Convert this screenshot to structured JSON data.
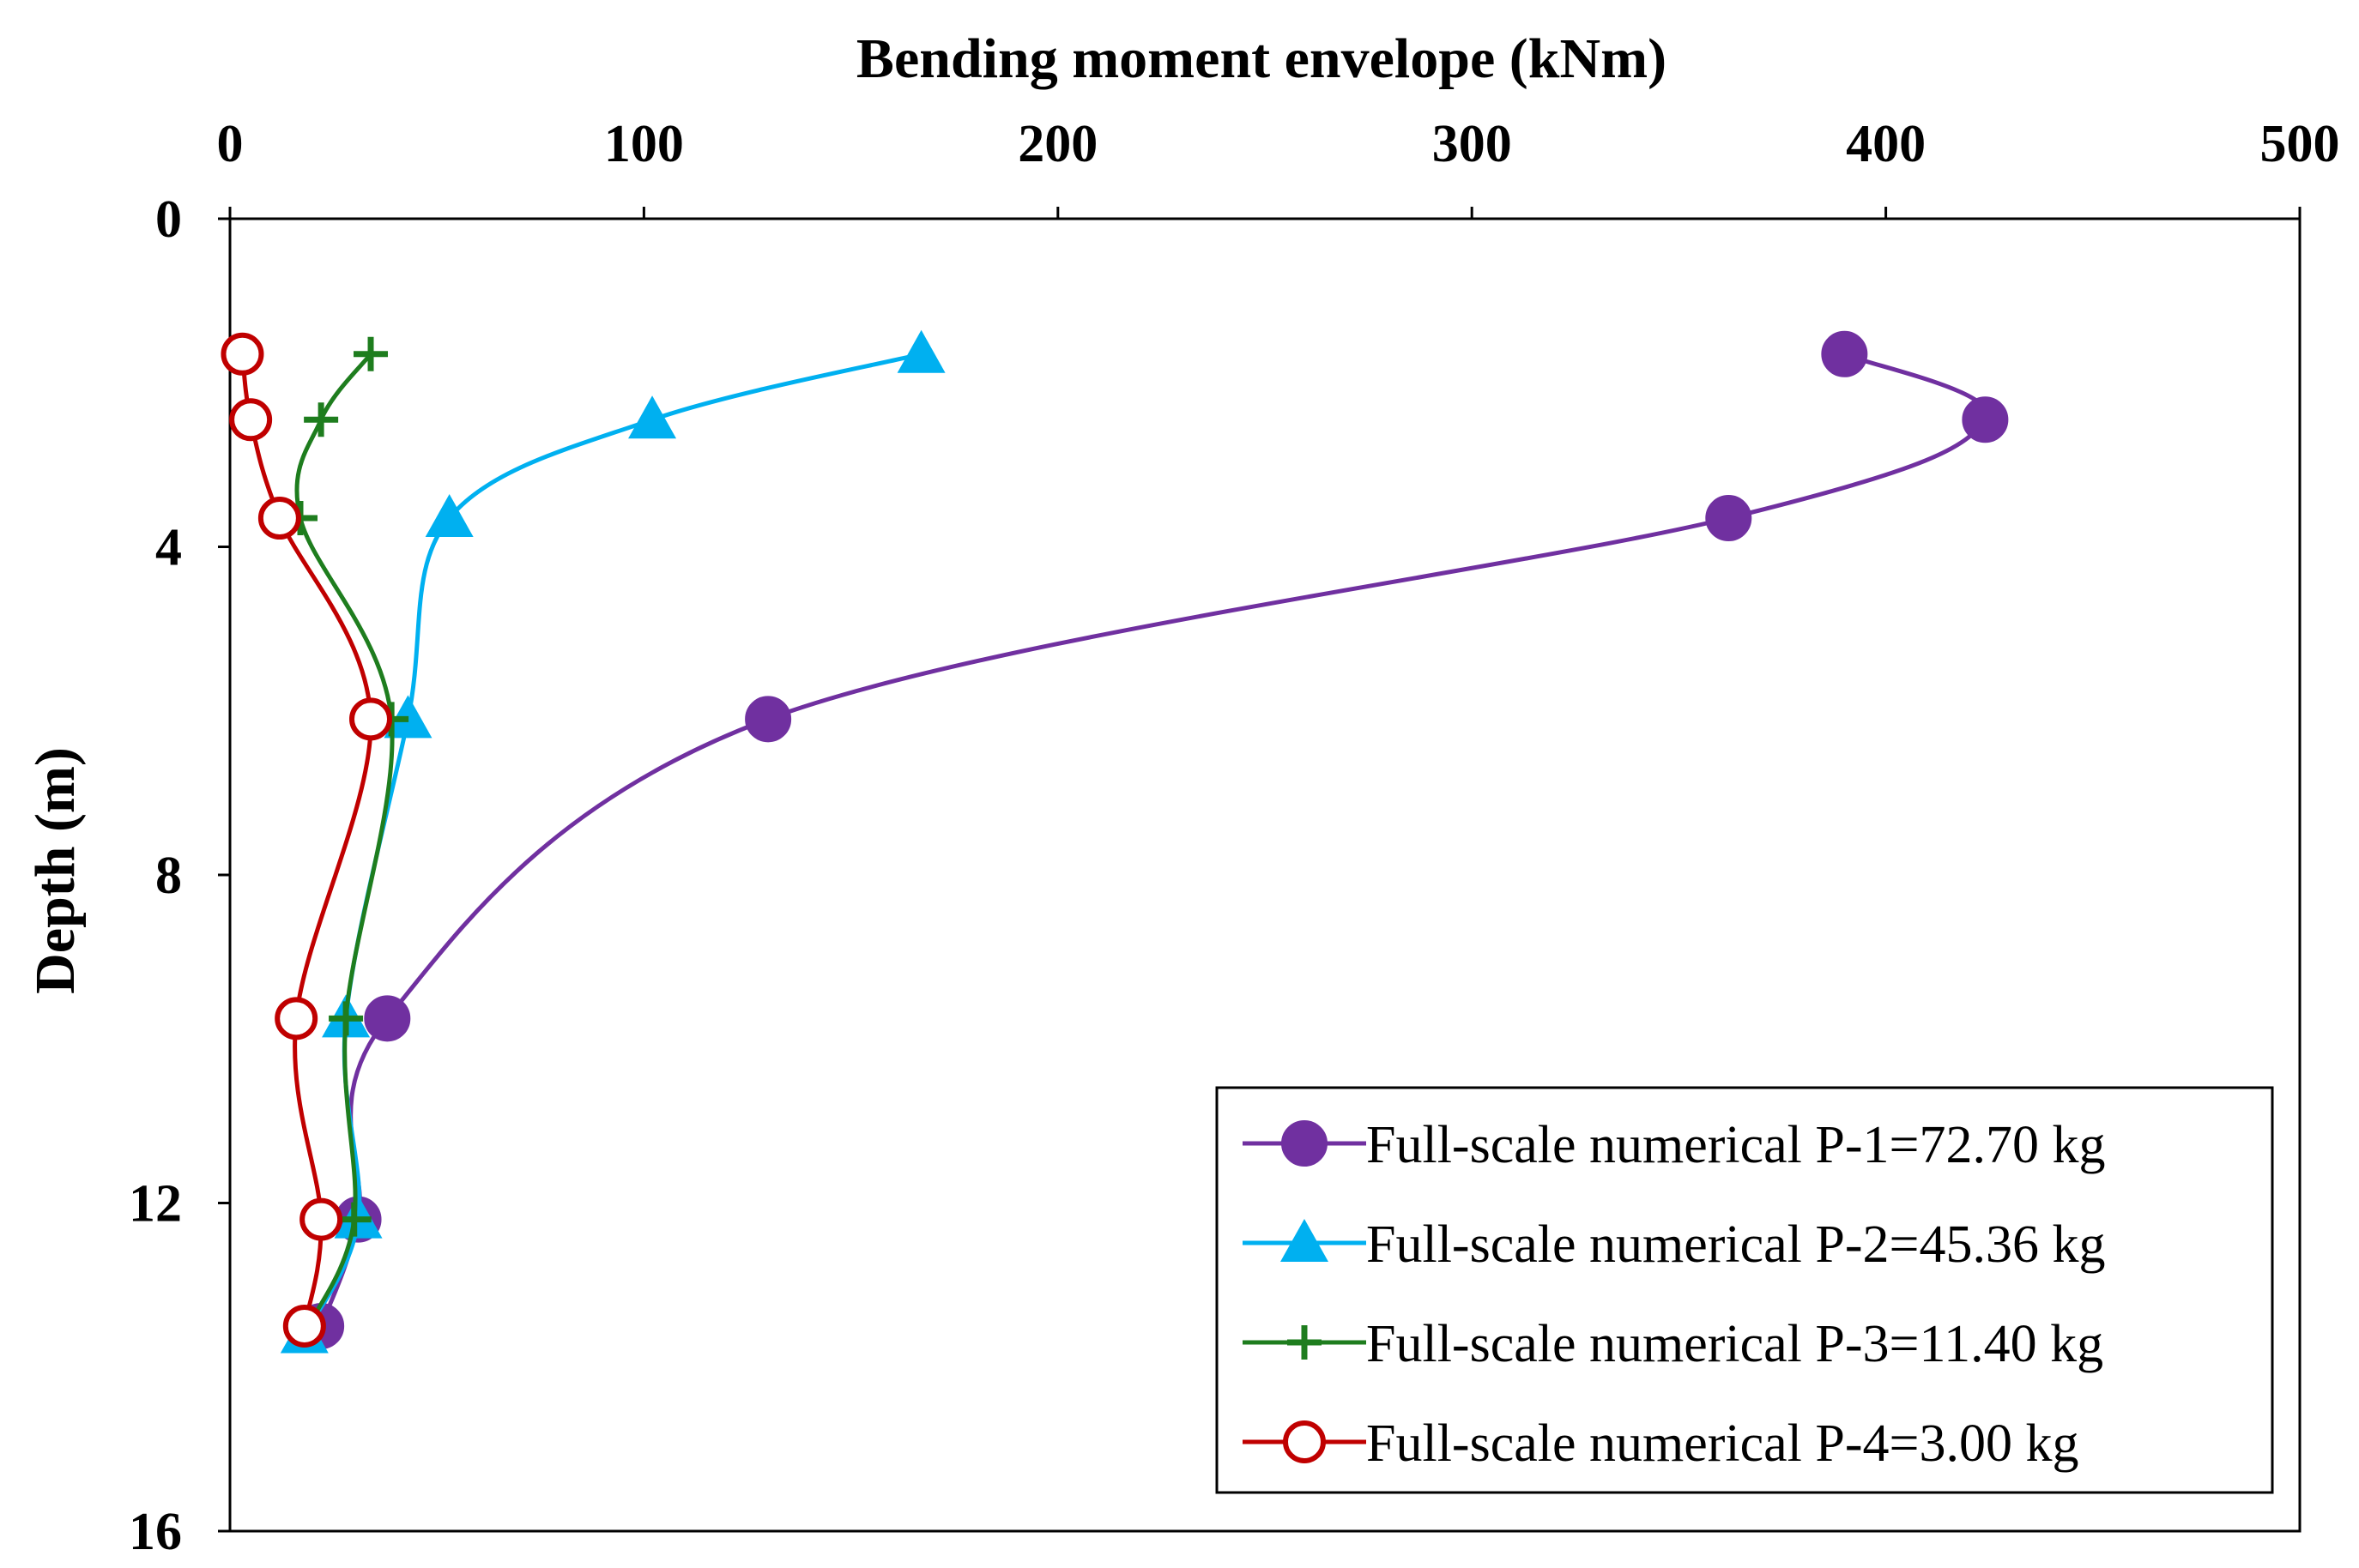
{
  "chart_data": {
    "type": "line",
    "title": "Bending moment envelope (kNm)",
    "xlabel": "Bending moment envelope (kNm)",
    "ylabel": "Depth (m)",
    "xlim": [
      0,
      500
    ],
    "ylim": [
      0,
      16
    ],
    "y_inverted": true,
    "x_axis_position": "top",
    "x_ticks": [
      0,
      100,
      200,
      300,
      400,
      500
    ],
    "y_ticks": [
      0,
      4,
      8,
      12,
      16
    ],
    "x_tick_labels": [
      "0",
      "100",
      "200",
      "300",
      "400",
      "500"
    ],
    "y_tick_labels": [
      "0",
      "4",
      "8",
      "12",
      "16"
    ],
    "grid": false,
    "legend_position": "bottom-right",
    "series": [
      {
        "name": "Full-scale numerical P-1=72.70 kg",
        "color": "#7030a0",
        "marker": "filled-circle",
        "x": [
          390,
          424,
          362,
          130,
          38,
          31,
          22
        ],
        "y": [
          1.65,
          2.45,
          3.65,
          6.1,
          9.75,
          12.2,
          13.5
        ]
      },
      {
        "name": "Full-scale numerical P-2=45.36 kg",
        "color": "#00b0f0",
        "marker": "filled-triangle",
        "x": [
          167,
          102,
          53,
          43,
          28,
          31,
          18
        ],
        "y": [
          1.65,
          2.45,
          3.65,
          6.1,
          9.75,
          12.2,
          13.6
        ]
      },
      {
        "name": "Full-scale numerical P-3=11.40 kg",
        "color": "#1e7d1e",
        "marker": "plus",
        "x": [
          34,
          22,
          17,
          39,
          28,
          30,
          19
        ],
        "y": [
          1.65,
          2.45,
          3.65,
          6.1,
          9.75,
          12.2,
          13.5
        ]
      },
      {
        "name": "Full-scale numerical P-4=3.00 kg",
        "color": "#c00000",
        "marker": "open-circle",
        "x": [
          3,
          5,
          12,
          34,
          16,
          22,
          18
        ],
        "y": [
          1.65,
          2.45,
          3.65,
          6.1,
          9.75,
          12.2,
          13.5
        ]
      }
    ]
  }
}
